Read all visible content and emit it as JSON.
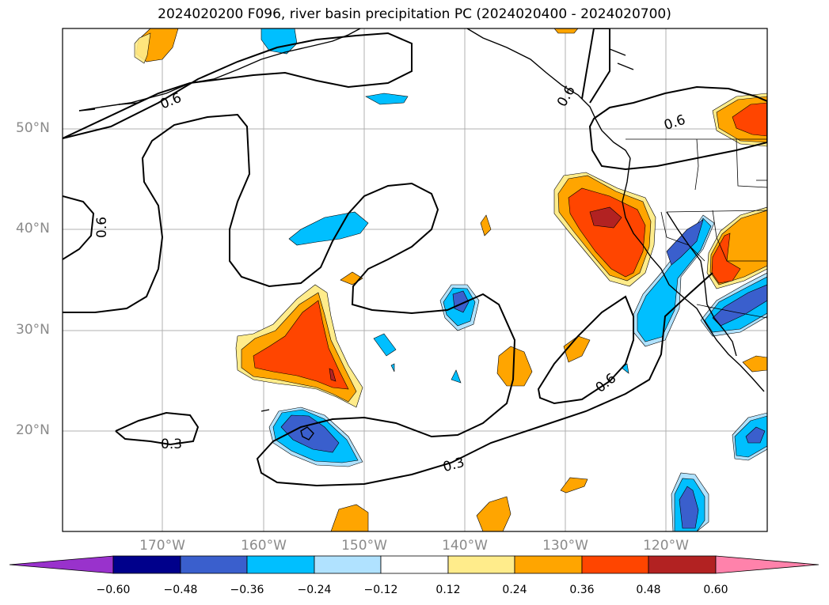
{
  "title": "2024020200 F096, river basin precipitation PC (2024020400 - 2024020700)",
  "lat_labels": [
    "50°N",
    "40°N",
    "30°N",
    "20°N"
  ],
  "lon_labels": [
    "170°W",
    "160°W",
    "150°W",
    "140°W",
    "130°W",
    "120°W"
  ],
  "contour_labels": [
    "0.6",
    "0.6",
    "0.6",
    "0.6",
    "0.6",
    "0.3",
    "0.3"
  ],
  "colorbar": {
    "ticks": [
      "−0.60",
      "−0.48",
      "−0.36",
      "−0.24",
      "−0.12",
      "0.12",
      "0.24",
      "0.36",
      "0.48",
      "0.60"
    ],
    "colors": [
      "#9932cc",
      "#00008b",
      "#3a5fcd",
      "#00bfff",
      "#b0e2ff",
      "#ffffff",
      "#ffec8b",
      "#ffa500",
      "#ff4500",
      "#b22222",
      "#ff82ab"
    ]
  },
  "shading_colors": {
    "lightblue": "#b0e2ff",
    "blue": "#00bfff",
    "royal": "#3a5fcd",
    "yellow": "#ffec8b",
    "orange": "#ffa500",
    "redorange": "#ff4500",
    "darkred": "#b22222"
  }
}
